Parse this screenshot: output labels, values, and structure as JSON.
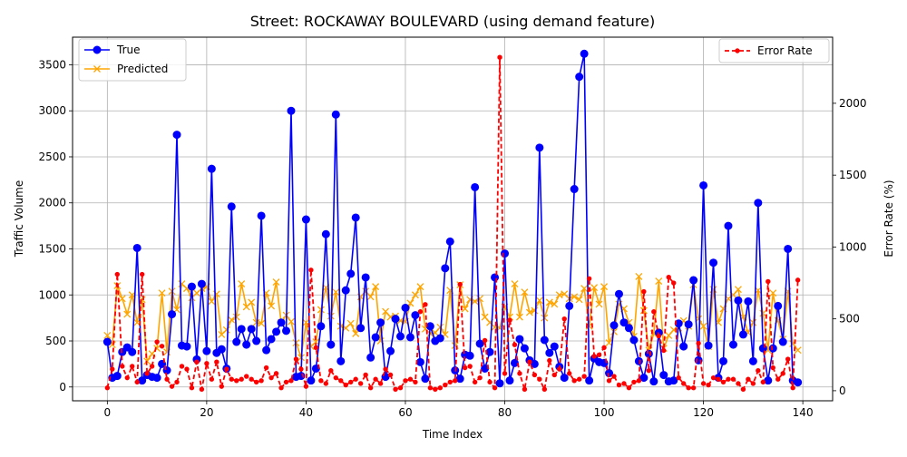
{
  "chart_data": {
    "type": "line",
    "title": "Street: ROCKAWAY BOULEVARD (using demand feature)",
    "xlabel": "Time Index",
    "ylabel_left": "Traffic Volume",
    "ylabel_right": "Error Rate (%)",
    "xlim": [
      -7,
      146
    ],
    "ylim_left": [
      -150,
      3800
    ],
    "ylim_right": [
      -70,
      2460
    ],
    "x_ticks": [
      0,
      20,
      40,
      60,
      80,
      100,
      120,
      140
    ],
    "y_ticks_left": [
      0,
      500,
      1000,
      1500,
      2000,
      2500,
      3000,
      3500
    ],
    "y_ticks_right": [
      0,
      500,
      1000,
      1500,
      2000
    ],
    "grid": true,
    "legend_left_position": "upper-left",
    "legend_right_position": "upper-right",
    "x": [
      0,
      1,
      2,
      3,
      4,
      5,
      6,
      7,
      8,
      9,
      10,
      11,
      12,
      13,
      14,
      15,
      16,
      17,
      18,
      19,
      20,
      21,
      22,
      23,
      24,
      25,
      26,
      27,
      28,
      29,
      30,
      31,
      32,
      33,
      34,
      35,
      36,
      37,
      38,
      39,
      40,
      41,
      42,
      43,
      44,
      45,
      46,
      47,
      48,
      49,
      50,
      51,
      52,
      53,
      54,
      55,
      56,
      57,
      58,
      59,
      60,
      61,
      62,
      63,
      64,
      65,
      66,
      67,
      68,
      69,
      70,
      71,
      72,
      73,
      74,
      75,
      76,
      77,
      78,
      79,
      80,
      81,
      82,
      83,
      84,
      85,
      86,
      87,
      88,
      89,
      90,
      91,
      92,
      93,
      94,
      95,
      96,
      97,
      98,
      99,
      100,
      101,
      102,
      103,
      104,
      105,
      106,
      107,
      108,
      109,
      110,
      111,
      112,
      113,
      114,
      115,
      116,
      117,
      118,
      119,
      120,
      121,
      122,
      123,
      124,
      125,
      126,
      127,
      128,
      129,
      130,
      131,
      132,
      133,
      134,
      135,
      136,
      137,
      138,
      139
    ],
    "series": [
      {
        "name": "True",
        "axis": "left",
        "color": "#0000ff",
        "marker": "circle",
        "linestyle": "solid",
        "values": [
          490,
          100,
          120,
          380,
          430,
          380,
          1510,
          70,
          130,
          110,
          100,
          250,
          180,
          790,
          2740,
          450,
          440,
          1090,
          300,
          1120,
          390,
          2370,
          370,
          410,
          200,
          1960,
          490,
          630,
          460,
          630,
          500,
          1860,
          400,
          520,
          600,
          700,
          610,
          3000,
          110,
          120,
          1820,
          70,
          200,
          660,
          1660,
          460,
          2960,
          280,
          1050,
          1230,
          1840,
          640,
          1190,
          320,
          540,
          700,
          110,
          390,
          740,
          550,
          860,
          540,
          780,
          270,
          90,
          660,
          500,
          530,
          1290,
          1580,
          180,
          90,
          350,
          340,
          2170,
          470,
          200,
          380,
          1190,
          40,
          1450,
          70,
          260,
          520,
          420,
          290,
          250,
          2600,
          510,
          370,
          440,
          220,
          100,
          880,
          2150,
          3370,
          3620,
          70,
          310,
          270,
          260,
          150,
          670,
          1010,
          700,
          640,
          510,
          280,
          100,
          360,
          60,
          590,
          130,
          60,
          70,
          690,
          440,
          680,
          1160,
          290,
          2190,
          450,
          1350,
          100,
          280,
          1750,
          460,
          940,
          570,
          930,
          280,
          2000,
          420,
          70,
          420,
          880,
          490,
          1500,
          70,
          50
        ]
      },
      {
        "name": "Predicted",
        "axis": "left",
        "color": "#ffa500",
        "marker": "x",
        "linestyle": "solid",
        "values": [
          560,
          460,
          1100,
          960,
          790,
          1000,
          700,
          950,
          280,
          360,
          420,
          1020,
          380,
          1040,
          840,
          1120,
          1070,
          970,
          1020,
          1070,
          1090,
          930,
          1010,
          570,
          620,
          730,
          760,
          1120,
          870,
          920,
          700,
          690,
          1020,
          880,
          1140,
          700,
          780,
          710,
          480,
          320,
          700,
          440,
          490,
          840,
          1080,
          770,
          1030,
          660,
          640,
          690,
          580,
          980,
          1040,
          980,
          1090,
          500,
          820,
          760,
          770,
          720,
          710,
          910,
          1000,
          1090,
          630,
          580,
          590,
          650,
          570,
          1050,
          450,
          1110,
          850,
          950,
          930,
          960,
          760,
          700,
          650,
          640,
          870,
          760,
          1120,
          760,
          1030,
          810,
          830,
          940,
          750,
          920,
          900,
          1000,
          1010,
          960,
          980,
          950,
          1070,
          660,
          1080,
          900,
          1090,
          480,
          600,
          900,
          850,
          700,
          550,
          1200,
          830,
          400,
          580,
          1150,
          420,
          560,
          620,
          640,
          720,
          660,
          1110,
          740,
          660,
          440,
          1060,
          700,
          850,
          960,
          1000,
          1060,
          760,
          590,
          700,
          1050,
          800,
          400,
          1020,
          720,
          520,
          1040,
          470,
          400
        ]
      },
      {
        "name": "Error Rate",
        "axis": "right",
        "color": "#ff0000",
        "marker": "dot",
        "linestyle": "dashed",
        "values": [
          20,
          150,
          810,
          170,
          90,
          170,
          60,
          810,
          120,
          170,
          340,
          310,
          80,
          30,
          60,
          170,
          150,
          20,
          200,
          10,
          190,
          80,
          200,
          30,
          150,
          80,
          70,
          80,
          100,
          80,
          60,
          70,
          160,
          90,
          120,
          20,
          60,
          70,
          220,
          150,
          30,
          840,
          300,
          70,
          50,
          140,
          90,
          70,
          40,
          60,
          80,
          50,
          110,
          20,
          80,
          50,
          150,
          110,
          10,
          20,
          70,
          80,
          60,
          550,
          600,
          20,
          10,
          20,
          40,
          60,
          70,
          740,
          160,
          170,
          60,
          90,
          350,
          60,
          20,
          2320,
          120,
          490,
          320,
          120,
          10,
          200,
          110,
          80,
          10,
          210,
          110,
          150,
          500,
          120,
          70,
          80,
          100,
          780,
          240,
          250,
          300,
          70,
          100,
          40,
          50,
          20,
          60,
          70,
          690,
          140,
          550,
          380,
          280,
          790,
          750,
          90,
          50,
          20,
          20,
          330,
          50,
          40,
          90,
          80,
          60,
          80,
          80,
          50,
          10,
          80,
          50,
          140,
          60,
          760,
          160,
          80,
          120,
          220,
          20,
          770
        ]
      }
    ]
  }
}
